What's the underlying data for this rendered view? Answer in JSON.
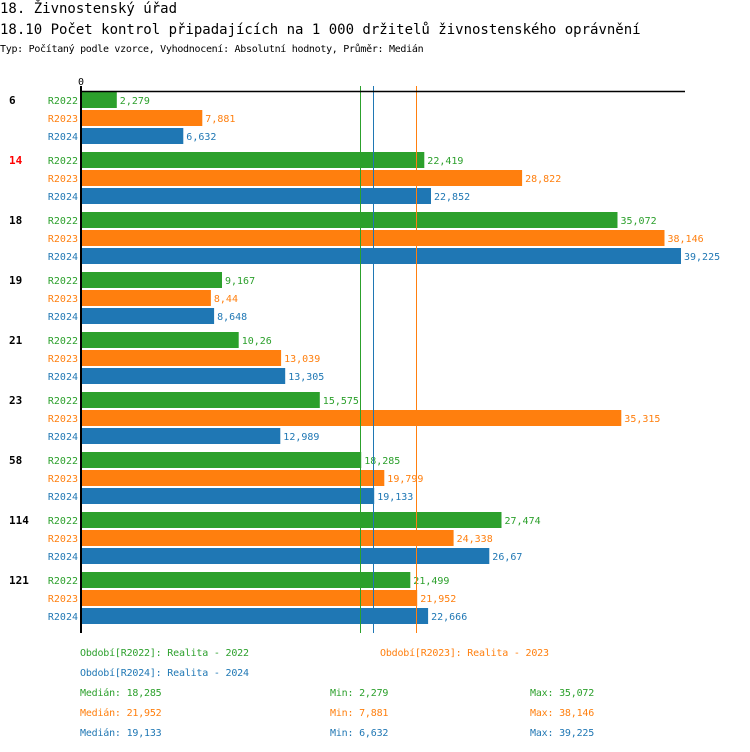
{
  "header": {
    "section_title": "18. Živnostenský úřad",
    "chart_title": "18.10 Počet kontrol připadajících na 1 000 držitelů živnostenského oprávnění",
    "subtitle": "Typ: Počítaný podle vzorce, Vyhodnocení: Absolutní hodnoty, Průměr: Medián"
  },
  "colors": {
    "R2022": "#2ca02c",
    "R2023": "#ff7f0e",
    "R2024": "#1f77b4",
    "highlight_group": "#ff0000",
    "axis": "#000000"
  },
  "chart_data": {
    "type": "bar",
    "orientation": "horizontal",
    "title": "18.10 Počet kontrol připadajících na 1 000 držitelů živnostenského oprávnění",
    "xlabel": "",
    "ylabel": "",
    "x_tick_labels": [
      "0"
    ],
    "xlim": [
      0,
      39.4
    ],
    "grid": false,
    "categories": [
      "6",
      "14",
      "18",
      "19",
      "21",
      "23",
      "58",
      "114",
      "121"
    ],
    "highlighted_category": "14",
    "series": [
      {
        "name": "R2022",
        "values": [
          2.279,
          22.419,
          35.072,
          9.167,
          10.26,
          15.575,
          18.285,
          27.474,
          21.499
        ],
        "labels": [
          "2,279",
          "22,419",
          "35,072",
          "9,167",
          "10,26",
          "15,575",
          "18,285",
          "27,474",
          "21,499"
        ]
      },
      {
        "name": "R2023",
        "values": [
          7.881,
          28.822,
          38.146,
          8.44,
          13.039,
          35.315,
          19.799,
          24.338,
          21.952
        ],
        "labels": [
          "7,881",
          "28,822",
          "38,146",
          "8,44",
          "13,039",
          "35,315",
          "19,799",
          "24,338",
          "21,952"
        ]
      },
      {
        "name": "R2024",
        "values": [
          6.632,
          22.852,
          39.225,
          8.648,
          13.305,
          12.989,
          19.133,
          26.67,
          22.666
        ],
        "labels": [
          "6,632",
          "22,852",
          "39,225",
          "8,648",
          "13,305",
          "12,989",
          "19,133",
          "26,67",
          "22,666"
        ]
      }
    ],
    "reference_lines": [
      {
        "series": "R2022",
        "type": "median",
        "value": 18.285
      },
      {
        "series": "R2024",
        "type": "median",
        "value": 19.133
      },
      {
        "series": "R2023",
        "type": "median",
        "value": 21.952
      }
    ],
    "legend": {
      "placement": "bottom",
      "entries": [
        {
          "series": "R2022",
          "text": "Období[R2022]: Realita - 2022"
        },
        {
          "series": "R2023",
          "text": "Období[R2023]: Realita - 2023"
        },
        {
          "series": "R2024",
          "text": "Období[R2024]: Realita - 2024"
        }
      ]
    },
    "stats": [
      {
        "series": "R2022",
        "median": "Medián: 18,285",
        "min": "Min: 2,279",
        "max": "Max: 35,072"
      },
      {
        "series": "R2023",
        "median": "Medián: 21,952",
        "min": "Min: 7,881",
        "max": "Max: 38,146"
      },
      {
        "series": "R2024",
        "median": "Medián: 19,133",
        "min": "Min: 6,632",
        "max": "Max: 39,225"
      }
    ]
  }
}
